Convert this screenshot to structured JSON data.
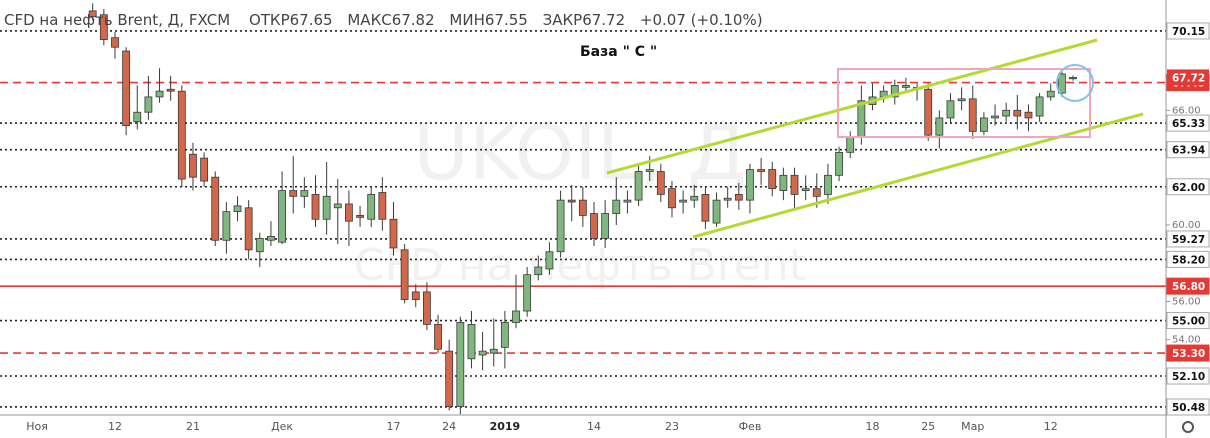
{
  "chart_data": {
    "type": "candlestick",
    "title": "CFD на нефть Brent, Д, FXCM",
    "ohlc_labels": [
      "ОТКР",
      "МАКС",
      "МИН",
      "ЗАКР"
    ],
    "change": "+0.07 (+0.10%)",
    "watermark": [
      "UKOIL, Д",
      "CFD на нефть Brent"
    ],
    "annotation": "База  \" С \"",
    "categories": [
      "Ноя",
      null,
      null,
      null,
      null,
      null,
      null,
      "12",
      null,
      null,
      null,
      null,
      null,
      null,
      "21",
      null,
      null,
      null,
      null,
      null,
      null,
      null,
      "Дек",
      null,
      null,
      null,
      null,
      null,
      null,
      null,
      null,
      null,
      "17",
      null,
      null,
      null,
      null,
      "24",
      null,
      null,
      null,
      null,
      "2019",
      null,
      null,
      null,
      null,
      null,
      null,
      null,
      "14",
      null,
      null,
      null,
      null,
      null,
      null,
      "23",
      null,
      null,
      null,
      null,
      null,
      null,
      "Фев",
      null,
      null,
      null,
      null,
      null,
      null,
      null,
      null,
      null,
      null,
      "18",
      null,
      null,
      null,
      null,
      "25",
      null,
      null,
      null,
      "Мар",
      null,
      null,
      null,
      null,
      null,
      null,
      "12",
      null,
      null
    ],
    "open": [
      null,
      null,
      null,
      null,
      null,
      71.2,
      71.0,
      69.8,
      69.1,
      65.4,
      65.9,
      66.7,
      67.1,
      67.0,
      63.7,
      63.5,
      62.5,
      59.2,
      60.7,
      60.9,
      58.6,
      59.2,
      59.1,
      61.8,
      61.5,
      61.6,
      60.3,
      60.9,
      61.1,
      60.5,
      60.3,
      61.7,
      60.3,
      58.7,
      56.5,
      56.5,
      54.8,
      53.4,
      50.5,
      53.0,
      53.2,
      53.3,
      53.6,
      54.9,
      55.5,
      57.4,
      57.7,
      58.6,
      61.3,
      61.3,
      60.6,
      59.3,
      60.6,
      61.2,
      61.3,
      62.8,
      62.8,
      61.9,
      61.2,
      61.3,
      61.6,
      60.1,
      61.3,
      61.6,
      61.3,
      62.9,
      62.9,
      61.8,
      62.6,
      61.8,
      61.9,
      61.6,
      62.6,
      63.8,
      64.6,
      66.3,
      66.7,
      66.7,
      67.2,
      67.1,
      67.1,
      64.7,
      65.6,
      66.5,
      66.6,
      64.9,
      65.6,
      65.7,
      66.0,
      65.9,
      65.7,
      66.7,
      66.9,
      67.65
    ],
    "high": [
      null,
      null,
      null,
      null,
      null,
      71.6,
      71.3,
      70.1,
      69.3,
      67.3,
      67.8,
      68.2,
      67.8,
      67.3,
      64.3,
      63.8,
      62.8,
      61.2,
      61.5,
      61.3,
      59.6,
      60.2,
      62.8,
      63.6,
      62.5,
      62.6,
      63.3,
      62.4,
      61.8,
      61.0,
      62.0,
      62.5,
      61.2,
      59.0,
      56.9,
      57.0,
      55.3,
      54.0,
      55.2,
      55.5,
      54.4,
      55.1,
      55.5,
      57.4,
      57.8,
      58.4,
      59.1,
      61.8,
      62.1,
      62.0,
      61.2,
      61.3,
      62.5,
      61.8,
      63.1,
      63.6,
      63.2,
      62.3,
      61.8,
      62.1,
      62.0,
      61.7,
      62.0,
      62.2,
      63.2,
      63.5,
      63.3,
      63.0,
      63.0,
      62.6,
      62.7,
      63.2,
      64.1,
      64.9,
      67.3,
      67.4,
      67.3,
      67.6,
      67.7,
      67.4,
      67.4,
      66.0,
      66.9,
      67.2,
      67.3,
      65.9,
      66.3,
      66.4,
      66.8,
      66.3,
      66.9,
      67.4,
      68.0,
      67.82
    ],
    "low": [
      null,
      null,
      null,
      null,
      null,
      70.7,
      69.4,
      68.7,
      64.7,
      65.0,
      65.5,
      66.4,
      66.5,
      62.0,
      61.8,
      62.0,
      58.9,
      58.5,
      60.2,
      58.2,
      57.8,
      58.9,
      59.0,
      60.6,
      60.9,
      59.9,
      59.5,
      59.0,
      58.9,
      59.9,
      59.9,
      59.7,
      58.4,
      55.9,
      55.7,
      54.5,
      53.3,
      50.3,
      50.1,
      52.5,
      52.4,
      52.6,
      52.5,
      54.6,
      55.2,
      57.1,
      57.4,
      58.3,
      60.2,
      59.9,
      58.9,
      58.8,
      60.0,
      60.6,
      61.0,
      62.3,
      61.2,
      60.4,
      60.6,
      60.9,
      59.8,
      59.9,
      60.9,
      60.8,
      60.6,
      62.1,
      61.5,
      61.3,
      60.9,
      61.3,
      60.9,
      61.1,
      62.3,
      63.5,
      64.2,
      66.0,
      66.4,
      66.3,
      66.9,
      66.5,
      64.4,
      64.0,
      65.3,
      66.0,
      64.5,
      64.7,
      65.2,
      65.4,
      65.0,
      64.9,
      65.4,
      66.5,
      66.7,
      67.55
    ],
    "close": [
      null,
      null,
      null,
      null,
      null,
      70.9,
      69.7,
      69.3,
      65.2,
      65.9,
      66.7,
      67.0,
      67.0,
      62.4,
      62.5,
      62.3,
      59.2,
      60.7,
      61.0,
      58.7,
      59.3,
      59.4,
      61.8,
      61.5,
      61.8,
      60.3,
      61.5,
      61.1,
      60.2,
      60.4,
      61.6,
      60.3,
      58.8,
      56.1,
      56.1,
      54.8,
      53.5,
      50.5,
      54.9,
      54.8,
      53.4,
      53.5,
      54.9,
      55.5,
      57.4,
      57.8,
      58.6,
      61.3,
      61.2,
      60.5,
      59.3,
      60.6,
      61.3,
      61.3,
      62.8,
      62.9,
      61.6,
      60.9,
      61.3,
      61.5,
      60.2,
      61.3,
      61.4,
      61.3,
      62.9,
      62.8,
      61.9,
      62.6,
      61.6,
      61.9,
      61.5,
      62.6,
      63.8,
      64.6,
      66.5,
      66.7,
      67.0,
      67.3,
      67.3,
      67.2,
      64.7,
      65.6,
      66.5,
      66.6,
      64.9,
      65.6,
      65.7,
      66.0,
      65.7,
      65.6,
      66.7,
      67.0,
      67.9,
      67.72
    ],
    "up_color": "#7fb77e",
    "down_color": "#d2674a",
    "last_price_color": "#e53935",
    "ylim": [
      50.06,
      71.77
    ],
    "yticks": [
      {
        "value": 66,
        "label": "66.00"
      },
      {
        "value": 60,
        "label": "60.00"
      },
      {
        "value": 56,
        "label": "56.00"
      },
      {
        "value": 54,
        "label": "54.00"
      }
    ],
    "levels": [
      {
        "value": 70.15,
        "style": "dotted"
      },
      {
        "value": 67.45,
        "style": "dashed-red"
      },
      {
        "value": 65.33,
        "style": "dotted"
      },
      {
        "value": 63.94,
        "style": "dotted"
      },
      {
        "value": 62,
        "label": "62.00",
        "style": "dotted"
      },
      {
        "value": 59.27,
        "style": "dotted"
      },
      {
        "value": 58.2,
        "label": "58.20",
        "style": "dotted"
      },
      {
        "value": 56.8,
        "label": "56.80",
        "style": "solid-red"
      },
      {
        "value": 55,
        "label": "55.00",
        "style": "dotted"
      },
      {
        "value": 53.3,
        "label": "53.30",
        "style": "dashed-red"
      },
      {
        "value": 52.1,
        "label": "52.10",
        "style": "dotted"
      },
      {
        "value": 50.48,
        "style": "dotted"
      }
    ]
  }
}
